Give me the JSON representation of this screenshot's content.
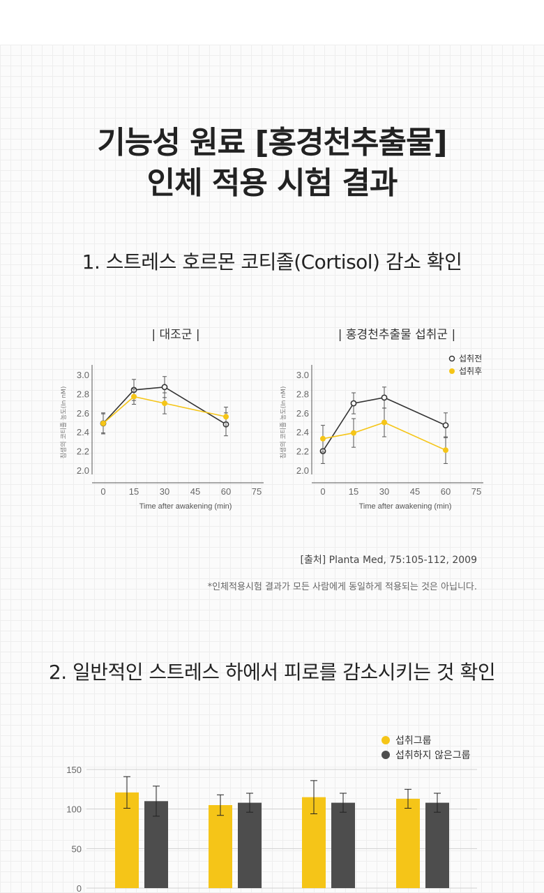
{
  "header": {
    "title_line1": "기능성 원료 [홍경천추출물]",
    "title_line2": "인체 적용 시험 결과"
  },
  "section1": {
    "title": "1. 스트레스 호르몬 코티졸(Cortisol) 감소 확인",
    "source": "[출처]  Planta Med, 75:105-112, 2009",
    "disclaimer": "*인체적용시험 결과가 모든 사람에게 동일하게 적용되는 것은 아닙니다."
  },
  "section2": {
    "title": "2. 일반적인 스트레스 하에서 피로를 감소시키는 것 확인"
  },
  "colors": {
    "before_line": "#333333",
    "after_line": "#f5c518",
    "bar_taking": "#f5c518",
    "bar_not_taking": "#4d4d4d",
    "gridline": "#d0d0d0"
  },
  "chart_data": [
    {
      "type": "line",
      "title": "| 대조군 |",
      "xlabel": "Time after awakening (min)",
      "ylabel": "침샘의 코티졸 농도(In nM)",
      "x": [
        0,
        15,
        30,
        60
      ],
      "xticks": [
        0,
        15,
        30,
        45,
        60,
        75
      ],
      "yticks": [
        "2.0",
        "2.2",
        "2.4",
        "2.6",
        "2.8",
        "3.0"
      ],
      "xlim": [
        0,
        75
      ],
      "ylim": [
        2.0,
        3.0
      ],
      "series": [
        {
          "values": [
            2.49,
            2.84,
            2.87,
            2.48
          ],
          "err": [
            0.11,
            0.11,
            0.11,
            0.12
          ],
          "style": "hollow"
        },
        {
          "values": [
            2.49,
            2.77,
            2.7,
            2.56
          ],
          "err": [
            0.1,
            0.08,
            0.11,
            0.1
          ],
          "style": "filled"
        }
      ]
    },
    {
      "type": "line",
      "title": "| 홍경천추출물 섭취군 |",
      "xlabel": "Time after awakening (min)",
      "ylabel": "침샘의 코티졸 농도(In nM)",
      "x": [
        0,
        15,
        30,
        60
      ],
      "xticks": [
        0,
        15,
        30,
        45,
        60,
        75
      ],
      "yticks": [
        "2.0",
        "2.2",
        "2.4",
        "2.6",
        "2.8",
        "3.0"
      ],
      "xlim": [
        0,
        75
      ],
      "ylim": [
        2.0,
        3.0
      ],
      "series": [
        {
          "name": "섭취전",
          "values": [
            2.2,
            2.7,
            2.76,
            2.47
          ],
          "err": [
            0.13,
            0.11,
            0.11,
            0.13
          ],
          "style": "hollow"
        },
        {
          "name": "섭취후",
          "values": [
            2.33,
            2.39,
            2.5,
            2.21
          ],
          "err": [
            0.14,
            0.15,
            0.15,
            0.14
          ],
          "style": "filled"
        }
      ]
    },
    {
      "type": "bar",
      "categories": [
        "",
        "",
        "",
        ""
      ],
      "yticks": [
        "0",
        "50",
        "100",
        "150"
      ],
      "ylim": [
        0,
        150
      ],
      "series": [
        {
          "name": "섭취그룹",
          "values": [
            121,
            105,
            115,
            113
          ],
          "err": [
            20,
            13,
            21,
            12
          ]
        },
        {
          "name": "섭취하지 않은그룹",
          "values": [
            110,
            108,
            108,
            108
          ],
          "err": [
            19,
            12,
            12,
            12
          ]
        }
      ]
    }
  ]
}
